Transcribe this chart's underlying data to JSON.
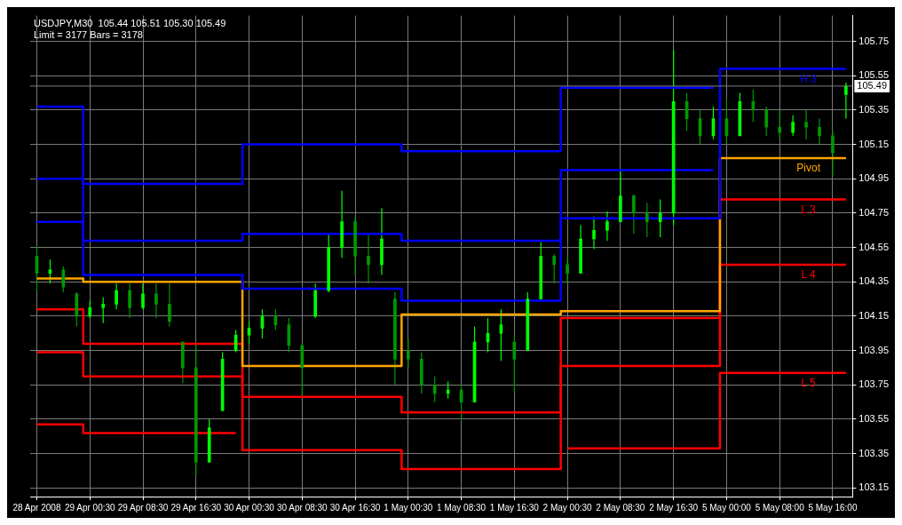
{
  "chart_data": {
    "type": "candlestick",
    "title": "USDJPY,M30  105.44 105.51 105.30 105.49",
    "annotations": [
      "Limit = 3177 Bars = 3178"
    ],
    "colors": [
      "#009900",
      "#00ff00",
      "#009900",
      "#009900",
      "#00ff00",
      "#00ff00",
      "#00ff00",
      "#009900",
      "#00ff00",
      "#009900",
      "#009900",
      "#009900",
      "#009900",
      "#00ff00",
      "#00ff00",
      "#00ff00",
      "#00ff00",
      "#00ff00",
      "#009900",
      "#009900",
      "#009900",
      "#00ff00",
      "#00ff00",
      "#00ff00",
      "#009900",
      "#009900",
      "#00ff00",
      "#009900",
      "#009900",
      "#009900",
      "#009900",
      "#00ff00",
      "#009900",
      "#00ff00",
      "#00ff00",
      "#00ff00",
      "#009900",
      "#00ff00",
      "#00ff00",
      "#009900",
      "#009900",
      "#00ff00",
      "#00ff00",
      "#00ff00",
      "#00ff00",
      "#009900",
      "#009900",
      "#00ff00",
      "#00ff00",
      "#009900",
      "#009900",
      "#00ff00",
      "#009900",
      "#00ff00",
      "#009900",
      "#009900",
      "#009900",
      "#00ff00",
      "#009900",
      "#009900",
      "#009900",
      "#00ff00"
    ],
    "categories": [
      "28 Apr 2008",
      null,
      null,
      null,
      "29 Apr 00:30",
      null,
      null,
      null,
      "29 Apr 08:30",
      null,
      null,
      null,
      "29 Apr 16:30",
      null,
      null,
      null,
      "30 Apr 00:30",
      null,
      null,
      null,
      "30 Apr 08:30",
      null,
      null,
      null,
      "30 Apr 16:30",
      null,
      null,
      null,
      "1 May 00:30",
      null,
      null,
      null,
      "1 May 08:30",
      null,
      null,
      null,
      "1 May 16:30",
      null,
      null,
      null,
      "2 May 00:30",
      null,
      null,
      null,
      "2 May 08:30",
      null,
      null,
      null,
      "2 May 16:30",
      null,
      null,
      null,
      "5 May 00:00",
      null,
      null,
      null,
      "5 May 08:00",
      null,
      null,
      null,
      "5 May 16:00",
      null
    ],
    "ohlc": [
      [
        104.5,
        104.56,
        104.29,
        104.4
      ],
      [
        104.4,
        104.48,
        104.34,
        104.42
      ],
      [
        104.42,
        104.44,
        104.29,
        104.32
      ],
      [
        104.28,
        104.29,
        104.09,
        104.15
      ],
      [
        104.15,
        104.24,
        104.14,
        104.2
      ],
      [
        104.2,
        104.26,
        104.11,
        104.22
      ],
      [
        104.22,
        104.34,
        104.19,
        104.3
      ],
      [
        104.3,
        104.34,
        104.14,
        104.2
      ],
      [
        104.2,
        104.34,
        104.19,
        104.28
      ],
      [
        104.28,
        104.34,
        104.14,
        104.22
      ],
      [
        104.22,
        104.34,
        104.09,
        104.12
      ],
      [
        104.0,
        104.0,
        103.76,
        103.85
      ],
      [
        103.85,
        103.99,
        103.22,
        103.3
      ],
      [
        103.3,
        103.55,
        103.3,
        103.5
      ],
      [
        103.6,
        103.94,
        103.6,
        103.9
      ],
      [
        103.95,
        104.07,
        103.94,
        104.04
      ],
      [
        104.04,
        104.12,
        103.99,
        104.08
      ],
      [
        104.08,
        104.19,
        104.02,
        104.15
      ],
      [
        104.15,
        104.19,
        104.07,
        104.1
      ],
      [
        104.1,
        104.14,
        103.94,
        103.98
      ],
      [
        103.98,
        103.99,
        103.69,
        103.85
      ],
      [
        104.15,
        104.34,
        104.14,
        104.3
      ],
      [
        104.3,
        104.63,
        104.29,
        104.55
      ],
      [
        104.55,
        104.88,
        104.49,
        104.7
      ],
      [
        104.7,
        104.73,
        104.39,
        104.5
      ],
      [
        104.5,
        104.63,
        104.34,
        104.45
      ],
      [
        104.45,
        104.78,
        104.39,
        104.6
      ],
      [
        104.25,
        104.29,
        103.75,
        103.9
      ],
      [
        103.95,
        104.02,
        103.85,
        103.9
      ],
      [
        103.9,
        103.94,
        103.7,
        103.75
      ],
      [
        103.75,
        103.8,
        103.65,
        103.7
      ],
      [
        103.7,
        103.77,
        103.67,
        103.72
      ],
      [
        103.72,
        103.75,
        103.54,
        103.65
      ],
      [
        103.65,
        104.09,
        103.65,
        104.0
      ],
      [
        104.0,
        104.14,
        103.94,
        104.05
      ],
      [
        104.05,
        104.19,
        103.89,
        104.1
      ],
      [
        104.0,
        104.04,
        103.71,
        103.9
      ],
      [
        103.95,
        104.29,
        103.95,
        104.25
      ],
      [
        104.25,
        104.58,
        104.25,
        104.5
      ],
      [
        104.5,
        104.51,
        104.34,
        104.45
      ],
      [
        104.45,
        104.49,
        104.34,
        104.4
      ],
      [
        104.4,
        104.68,
        104.4,
        104.6
      ],
      [
        104.6,
        104.73,
        104.54,
        104.65
      ],
      [
        104.65,
        104.76,
        104.59,
        104.7
      ],
      [
        104.7,
        105.01,
        104.7,
        104.85
      ],
      [
        104.85,
        104.86,
        104.63,
        104.75
      ],
      [
        104.75,
        104.81,
        104.61,
        104.7
      ],
      [
        104.7,
        104.83,
        104.61,
        104.75
      ],
      [
        104.75,
        105.7,
        104.68,
        105.4
      ],
      [
        105.4,
        105.45,
        105.23,
        105.3
      ],
      [
        105.3,
        105.35,
        105.15,
        105.2
      ],
      [
        105.2,
        105.37,
        105.18,
        105.3
      ],
      [
        105.3,
        105.42,
        105.15,
        105.2
      ],
      [
        105.2,
        105.45,
        105.2,
        105.4
      ],
      [
        105.4,
        105.47,
        105.28,
        105.35
      ],
      [
        105.35,
        105.37,
        105.2,
        105.25
      ],
      [
        105.25,
        105.35,
        105.18,
        105.22
      ],
      [
        105.22,
        105.32,
        105.2,
        105.28
      ],
      [
        105.28,
        105.35,
        105.18,
        105.25
      ],
      [
        105.25,
        105.3,
        105.15,
        105.2
      ],
      [
        105.2,
        105.23,
        104.97,
        105.1
      ],
      [
        105.44,
        105.51,
        105.3,
        105.49
      ]
    ],
    "series": [
      {
        "type": "step",
        "color": "#0000ff",
        "values": [
          105.37,
          105.37,
          105.37,
          105.37,
          104.92,
          104.92,
          104.92,
          104.92,
          104.92,
          104.92,
          104.92,
          104.92,
          104.92,
          104.92,
          104.92,
          104.92,
          105.15,
          105.15,
          105.15,
          105.15,
          105.15,
          105.15,
          105.15,
          105.15,
          105.15,
          105.15,
          105.15,
          105.15,
          105.11,
          105.11,
          105.11,
          105.11,
          105.11,
          105.11,
          105.11,
          105.11,
          105.11,
          105.11,
          105.11,
          105.11,
          105.48,
          105.48,
          105.48,
          105.48,
          105.48,
          105.48,
          105.48,
          105.48,
          105.48,
          105.48,
          105.48,
          105.48,
          null,
          null,
          null,
          null,
          null,
          null,
          null,
          null,
          null,
          null
        ]
      },
      {
        "type": "step",
        "color": "#0000ff",
        "values": [
          104.95,
          104.95,
          104.95,
          104.95,
          104.59,
          104.59,
          104.59,
          104.59,
          104.59,
          104.59,
          104.59,
          104.59,
          104.59,
          104.59,
          104.59,
          104.59,
          104.63,
          104.63,
          104.63,
          104.63,
          104.63,
          104.63,
          104.63,
          104.63,
          104.63,
          104.63,
          104.63,
          104.63,
          104.59,
          104.59,
          104.59,
          104.59,
          104.59,
          104.59,
          104.59,
          104.59,
          104.59,
          104.59,
          104.59,
          104.59,
          105.0,
          105.0,
          105.0,
          105.0,
          105.0,
          105.0,
          105.0,
          105.0,
          105.0,
          105.0,
          105.0,
          105.0,
          null,
          null,
          null,
          null,
          null,
          null,
          null,
          null,
          null,
          null
        ]
      },
      {
        "type": "step",
        "name": "H 3",
        "color": "#0000ff",
        "values": [
          104.7,
          104.7,
          104.7,
          104.7,
          104.39,
          104.39,
          104.39,
          104.39,
          104.39,
          104.39,
          104.39,
          104.39,
          104.39,
          104.39,
          104.39,
          104.39,
          104.31,
          104.31,
          104.31,
          104.31,
          104.31,
          104.31,
          104.31,
          104.31,
          104.31,
          104.31,
          104.31,
          104.31,
          104.24,
          104.24,
          104.24,
          104.24,
          104.24,
          104.24,
          104.24,
          104.24,
          104.24,
          104.24,
          104.24,
          104.24,
          104.72,
          104.72,
          104.72,
          104.72,
          104.72,
          104.72,
          104.72,
          104.72,
          104.72,
          104.72,
          104.72,
          104.72,
          105.59,
          105.59,
          105.59,
          105.59,
          105.59,
          105.59,
          105.59,
          105.59,
          105.59,
          105.59
        ]
      },
      {
        "type": "step",
        "name": "Pivot",
        "color": "#ffa500",
        "values": [
          104.37,
          104.37,
          104.37,
          104.37,
          104.35,
          104.35,
          104.35,
          104.35,
          104.35,
          104.35,
          104.35,
          104.35,
          104.35,
          104.35,
          104.35,
          104.35,
          103.86,
          103.86,
          103.86,
          103.86,
          103.86,
          103.86,
          103.86,
          103.86,
          103.86,
          103.86,
          103.86,
          103.86,
          104.16,
          104.16,
          104.16,
          104.16,
          104.16,
          104.16,
          104.16,
          104.16,
          104.16,
          104.16,
          104.16,
          104.16,
          104.18,
          104.18,
          104.18,
          104.18,
          104.18,
          104.18,
          104.18,
          104.18,
          104.18,
          104.18,
          104.18,
          104.18,
          105.07,
          105.07,
          105.07,
          105.07,
          105.07,
          105.07,
          105.07,
          105.07,
          105.07,
          105.07
        ]
      },
      {
        "type": "step",
        "name": "L 3",
        "color": "#ff0000",
        "values": [
          104.19,
          104.19,
          104.19,
          104.19,
          103.99,
          103.99,
          103.99,
          103.99,
          103.99,
          103.99,
          103.99,
          103.99,
          103.99,
          103.99,
          103.99,
          103.99,
          103.68,
          103.68,
          103.68,
          103.68,
          103.68,
          103.68,
          103.68,
          103.68,
          103.68,
          103.68,
          103.68,
          103.68,
          103.59,
          103.59,
          103.59,
          103.59,
          103.59,
          103.59,
          103.59,
          103.59,
          103.59,
          103.59,
          103.59,
          103.59,
          104.14,
          104.14,
          104.14,
          104.14,
          104.14,
          104.14,
          104.14,
          104.14,
          104.14,
          104.14,
          104.14,
          104.14,
          104.83,
          104.83,
          104.83,
          104.83,
          104.83,
          104.83,
          104.83,
          104.83,
          104.83,
          104.83
        ]
      },
      {
        "type": "step",
        "name": "L 4",
        "color": "#ff0000",
        "values": [
          103.94,
          103.94,
          103.94,
          103.94,
          103.8,
          103.8,
          103.8,
          103.8,
          103.8,
          103.8,
          103.8,
          103.8,
          103.8,
          103.8,
          103.8,
          103.8,
          103.37,
          103.37,
          103.37,
          103.37,
          103.37,
          103.37,
          103.37,
          103.37,
          103.37,
          103.37,
          103.37,
          103.37,
          103.26,
          103.26,
          103.26,
          103.26,
          103.26,
          103.26,
          103.26,
          103.26,
          103.26,
          103.26,
          103.26,
          103.26,
          103.86,
          103.86,
          103.86,
          103.86,
          103.86,
          103.86,
          103.86,
          103.86,
          103.86,
          103.86,
          103.86,
          103.86,
          104.45,
          104.45,
          104.45,
          104.45,
          104.45,
          104.45,
          104.45,
          104.45,
          104.45,
          104.45
        ]
      },
      {
        "type": "step",
        "name": "L 5",
        "color": "#ff0000",
        "values": [
          103.52,
          103.52,
          103.52,
          103.52,
          103.47,
          103.47,
          103.47,
          103.47,
          103.47,
          103.47,
          103.47,
          103.47,
          103.47,
          103.47,
          103.47,
          103.47,
          null,
          null,
          null,
          null,
          null,
          null,
          null,
          null,
          null,
          null,
          null,
          null,
          null,
          null,
          null,
          null,
          null,
          null,
          null,
          null,
          null,
          null,
          null,
          null,
          103.38,
          103.38,
          103.38,
          103.38,
          103.38,
          103.38,
          103.38,
          103.38,
          103.38,
          103.38,
          103.38,
          103.38,
          103.82,
          103.82,
          103.82,
          103.82,
          103.82,
          103.82,
          103.82,
          103.82,
          103.82,
          103.82
        ]
      }
    ],
    "ref_lines": [
      {
        "axis": "y",
        "value": 105.49,
        "label": "105.49",
        "color": "#808080"
      }
    ],
    "ylim": [
      103.1,
      105.9
    ],
    "yticks": [
      103.15,
      103.35,
      103.55,
      103.75,
      103.95,
      104.15,
      104.35,
      104.55,
      104.75,
      104.95,
      105.15,
      105.35,
      105.55,
      105.75
    ],
    "grid": true,
    "legend": false
  }
}
